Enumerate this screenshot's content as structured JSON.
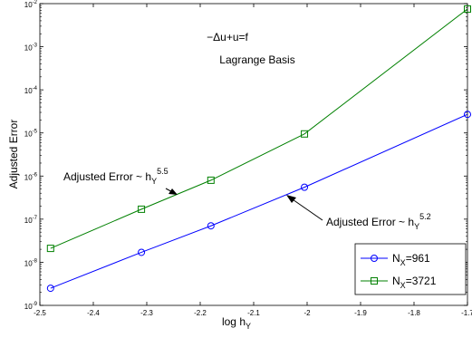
{
  "chart_data": {
    "type": "line",
    "xlabel": "log h",
    "xlabel_sub": "Y",
    "ylabel": "Adjusted Error",
    "xlim": [
      -2.5,
      -1.7
    ],
    "ylim": [
      1e-09,
      0.01
    ],
    "yscale": "log",
    "grid": false,
    "legend_position": "bottom-right",
    "xticks": [
      -2.5,
      -2.4,
      -2.3,
      -2.2,
      -2.1,
      -2,
      -1.9,
      -1.8,
      -1.7
    ],
    "xtick_labels": [
      "-2.5",
      "-2.4",
      "-2.3",
      "-2.2",
      "-2.1",
      "-2",
      "-1.9",
      "-1.8",
      "-1.7"
    ],
    "yticks": [
      1e-09,
      1e-08,
      1e-07,
      1e-06,
      1e-05,
      0.0001,
      0.001,
      0.01
    ],
    "ytick_exponents": [
      "-9",
      "-8",
      "-7",
      "-6",
      "-5",
      "-4",
      "-3",
      "-2"
    ],
    "ytick_base": "10",
    "series": [
      {
        "name": "N",
        "name_sub": "X",
        "name_suffix": "=961",
        "color": "#0000ff",
        "marker": "circle",
        "x": [
          -2.48,
          -2.31,
          -2.18,
          -2.005,
          -1.7
        ],
        "y": [
          2.5e-09,
          1.7e-08,
          7e-08,
          5.5e-07,
          2.7e-05
        ]
      },
      {
        "name": "N",
        "name_sub": "X",
        "name_suffix": "=3721",
        "color": "#008000",
        "marker": "square",
        "x": [
          -2.48,
          -2.31,
          -2.18,
          -2.005,
          -1.7
        ],
        "y": [
          2.1e-08,
          1.7e-07,
          8e-07,
          9.5e-06,
          0.0075
        ]
      }
    ],
    "annotations": {
      "equation": "−Δu+u=f",
      "basis": "Lagrange Basis",
      "upper_label": "Adjusted Error ~ h",
      "upper_sub": "Y",
      "upper_sup": "5.5",
      "lower_label": "Adjusted Error ~ h",
      "lower_sub": "Y",
      "lower_sup": "5.2"
    }
  }
}
